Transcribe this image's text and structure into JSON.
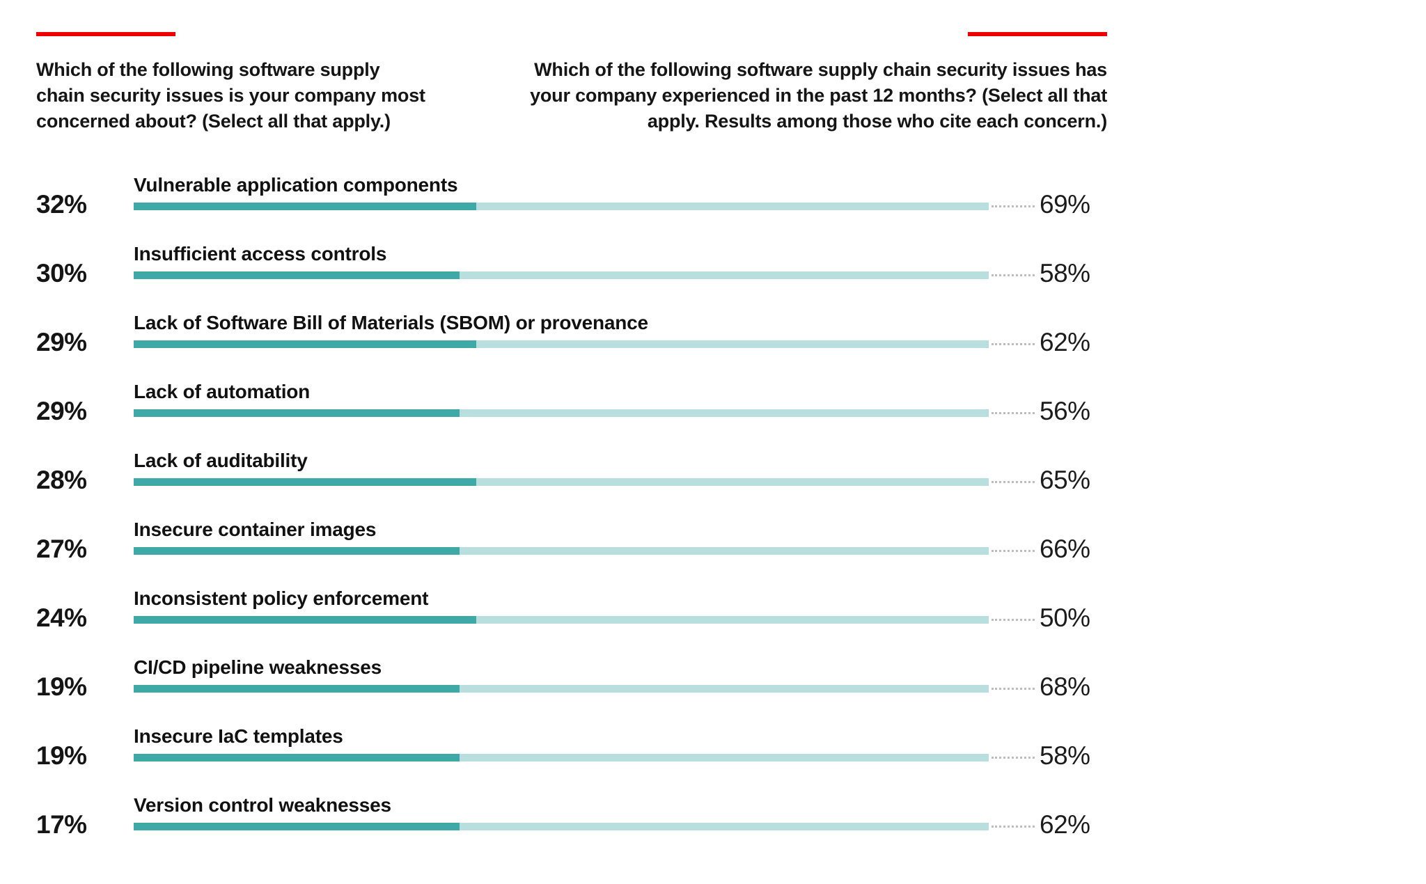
{
  "header_left": {
    "question": "Which of the following software supply chain security issues is your company most concerned about? (Select all that apply.)",
    "lines": [
      "Which of the following software supply",
      "chain security issues is your company most",
      "concerned about? (Select all that apply.)"
    ]
  },
  "header_right": {
    "question": "Which of the following software supply chain security issues has your company experienced in the past 12 months? (Select all that apply. Results among those who cite each concern.)",
    "lines": [
      "Which of the following software supply chain security issues has",
      "your company experienced in the past 12 months? (Select all that",
      "apply. Results among those who cite each concern.)"
    ]
  },
  "chart_data": {
    "type": "bar",
    "orientation": "horizontal",
    "unit": "%",
    "grid": "off",
    "legend": "none",
    "categories": [
      "Vulnerable application components",
      "Insufficient access controls",
      "Lack of Software Bill of Materials (SBOM) or provenance",
      "Lack of automation",
      "Lack of auditability",
      "Insecure container images",
      "Inconsistent policy enforcement",
      "CI/CD pipeline weaknesses",
      "Insecure IaC templates",
      "Version control weaknesses"
    ],
    "series": [
      {
        "name": "Most concerned about",
        "values": [
          32,
          30,
          29,
          29,
          28,
          27,
          24,
          19,
          19,
          17
        ]
      },
      {
        "name": "Experienced in past 12 months",
        "values": [
          69,
          58,
          62,
          56,
          65,
          66,
          50,
          68,
          58,
          62
        ]
      }
    ],
    "rows": [
      {
        "label": "Vulnerable application components",
        "concerned": "32%",
        "experienced": "69%",
        "bar_fill_percent": 40.1
      },
      {
        "label": "Insufficient access controls",
        "concerned": "30%",
        "experienced": "58%",
        "bar_fill_percent": 38.1
      },
      {
        "label": "Lack of Software Bill of Materials (SBOM) or provenance",
        "concerned": "29%",
        "experienced": "62%",
        "bar_fill_percent": 40.1
      },
      {
        "label": "Lack of automation",
        "concerned": "29%",
        "experienced": "56%",
        "bar_fill_percent": 38.1
      },
      {
        "label": "Lack of auditability",
        "concerned": "28%",
        "experienced": "65%",
        "bar_fill_percent": 40.1
      },
      {
        "label": "Insecure container images",
        "concerned": "27%",
        "experienced": "66%",
        "bar_fill_percent": 38.1
      },
      {
        "label": "Inconsistent policy enforcement",
        "concerned": "24%",
        "experienced": "50%",
        "bar_fill_percent": 40.1
      },
      {
        "label": "CI/CD pipeline weaknesses",
        "concerned": "19%",
        "experienced": "68%",
        "bar_fill_percent": 38.1
      },
      {
        "label": "Insecure IaC templates",
        "concerned": "19%",
        "experienced": "58%",
        "bar_fill_percent": 38.1
      },
      {
        "label": "Version control weaknesses",
        "concerned": "17%",
        "experienced": "62%",
        "bar_fill_percent": 38.1
      }
    ],
    "colors": {
      "accent_red": "#ee0000",
      "bar_dark": "#3fa9a8",
      "bar_light": "#b8dedd",
      "leader_dot": "#bdbdbd",
      "text": "#151515"
    }
  }
}
